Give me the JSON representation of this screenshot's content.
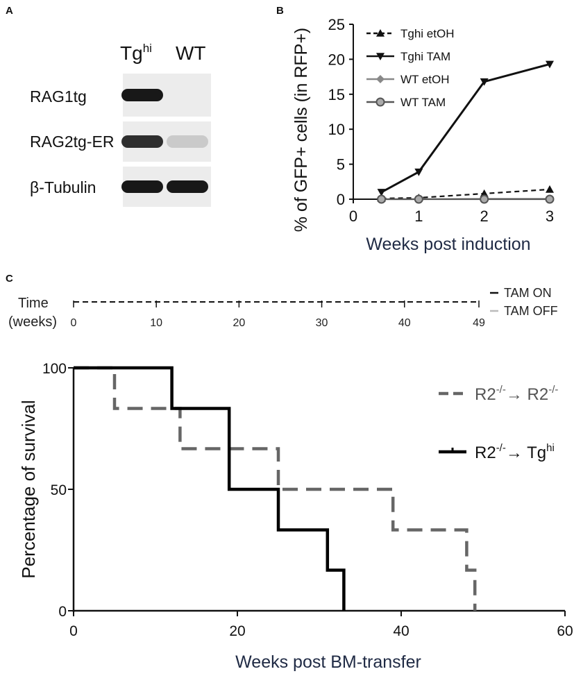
{
  "panel_labels": {
    "a": "A",
    "b": "B",
    "c": "C"
  },
  "blot": {
    "columns": [
      {
        "main": "Tg",
        "sup": "hi"
      },
      {
        "main": "WT",
        "sup": ""
      }
    ],
    "rows": [
      {
        "label": "RAG1tg",
        "bands": [
          0.95,
          0.0
        ]
      },
      {
        "label": "RAG2tg-ER",
        "bands": [
          0.85,
          0.15
        ]
      },
      {
        "label": "β-Tubulin",
        "bands": [
          0.95,
          0.95
        ]
      }
    ]
  },
  "timeline": {
    "label_line1": "Time",
    "label_line2": "(weeks)",
    "ticks": [
      "0",
      "10",
      "20",
      "30",
      "40",
      "49"
    ],
    "max": 49,
    "legend": [
      {
        "label": "TAM ON",
        "color": "#111111"
      },
      {
        "label": "TAM OFF",
        "color": "#bbbbbb"
      }
    ]
  },
  "chart_data": [
    {
      "type": "line",
      "panel": "B",
      "xlabel": "Weeks post induction",
      "ylabel": "% of GFP+ cells (in RFP+)",
      "xlim": [
        0,
        3
      ],
      "ylim": [
        0,
        25
      ],
      "xticks": [
        "0",
        "1",
        "2",
        "3"
      ],
      "yticks": [
        "0",
        "5",
        "10",
        "15",
        "20",
        "25"
      ],
      "x": [
        0.43,
        1,
        2,
        3
      ],
      "series": [
        {
          "name": "Tghi etOH",
          "values": [
            0.1,
            0.2,
            0.8,
            1.4
          ],
          "color": "#111111",
          "dash": "7,5",
          "marker": "triangle-up"
        },
        {
          "name": "Tghi TAM",
          "values": [
            1.0,
            3.9,
            16.8,
            19.3
          ],
          "color": "#111111",
          "dash": "",
          "marker": "triangle-down"
        },
        {
          "name": "WT etOH",
          "values": [
            0.0,
            0.0,
            0.05,
            0.05
          ],
          "color": "#888888",
          "dash": "",
          "marker": "diamond"
        },
        {
          "name": "WT TAM",
          "values": [
            0.0,
            0.0,
            0.0,
            0.0
          ],
          "color": "#555555",
          "dash": "",
          "marker": "circle"
        }
      ]
    },
    {
      "type": "line",
      "panel": "C",
      "xlabel": "Weeks post BM-transfer",
      "ylabel": "Percentage of survival",
      "xlim": [
        0,
        60
      ],
      "ylim": [
        0,
        100
      ],
      "xticks": [
        "0",
        "20",
        "40",
        "60"
      ],
      "yticks": [
        "0",
        "50",
        "100"
      ],
      "series": [
        {
          "name": "R2-/-→ R2-/-",
          "name_parts": [
            "R2",
            "-/-",
            "→ R2",
            "-/-"
          ],
          "color": "#666666",
          "dash": "22,12",
          "x": [
            0,
            5,
            5,
            13,
            13,
            25,
            25,
            39,
            39,
            48,
            48,
            49,
            49
          ],
          "y": [
            100,
            100,
            83.3,
            83.3,
            66.7,
            66.7,
            50,
            50,
            33.3,
            33.3,
            16.7,
            16.7,
            0
          ]
        },
        {
          "name": "R2-/-→ Tghi",
          "name_parts": [
            "R2",
            "-/-",
            "→ Tg",
            "hi"
          ],
          "color": "#000000",
          "dash": "",
          "x": [
            0,
            12,
            12,
            19,
            19,
            25,
            25,
            31,
            31,
            33,
            33
          ],
          "y": [
            100,
            100,
            83.3,
            83.3,
            50,
            50,
            33.3,
            33.3,
            16.7,
            16.7,
            0
          ]
        }
      ]
    }
  ]
}
